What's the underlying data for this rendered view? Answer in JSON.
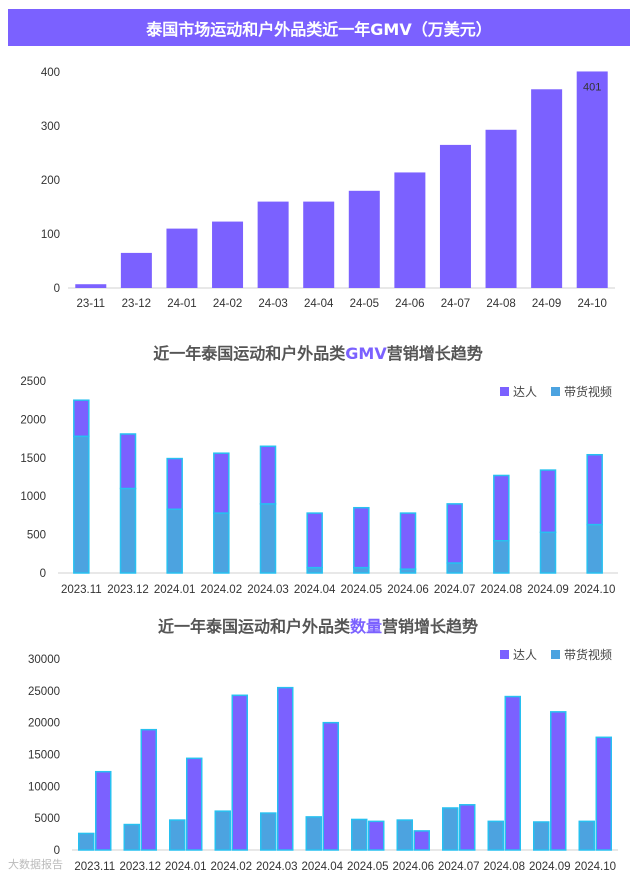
{
  "chart_data": [
    {
      "type": "bar",
      "title": "泰国市场运动和户外品类近一年GMV（万美元）",
      "categories": [
        "23-11",
        "23-12",
        "24-01",
        "24-02",
        "24-03",
        "24-04",
        "24-05",
        "24-06",
        "24-07",
        "24-08",
        "24-09",
        "24-10"
      ],
      "values": [
        7,
        65,
        110,
        123,
        160,
        160,
        180,
        214,
        265,
        293,
        368,
        401
      ],
      "data_labels": [
        {
          "index": 11,
          "text": "401"
        }
      ],
      "ylim": [
        0,
        400
      ],
      "yticks": [
        0,
        100,
        200,
        300,
        400
      ],
      "color": "#7b61ff"
    },
    {
      "type": "bar",
      "stacked": true,
      "title": "近一年泰国运动和户外品类GMV营销增长趋势",
      "title_parts": [
        "近一年泰国运动和户外品类",
        "GMV",
        "营销增长趋势"
      ],
      "categories": [
        "2023.11",
        "2023.12",
        "2024.01",
        "2024.02",
        "2024.03",
        "2024.04",
        "2024.05",
        "2024.06",
        "2024.07",
        "2024.08",
        "2024.09",
        "2024.10"
      ],
      "series": [
        {
          "name": "带货视频",
          "values": [
            1780,
            1100,
            830,
            780,
            900,
            70,
            70,
            50,
            130,
            420,
            530,
            630
          ],
          "color": "#4ca3e0"
        },
        {
          "name": "达人",
          "values": [
            470,
            710,
            660,
            780,
            750,
            710,
            780,
            730,
            770,
            850,
            810,
            910
          ],
          "color": "#7b61ff"
        }
      ],
      "legend_order": [
        "达人",
        "带货视频"
      ],
      "legend_position": "top-right",
      "ylim": [
        0,
        2500
      ],
      "yticks": [
        0,
        500,
        1000,
        1500,
        2000,
        2500
      ]
    },
    {
      "type": "bar",
      "grouped": true,
      "title": "近一年泰国运动和户外品类数量营销增长趋势",
      "title_parts": [
        "近一年泰国运动和户外品类",
        "数量",
        "营销增长趋势"
      ],
      "categories": [
        "2023.11",
        "2023.12",
        "2024.01",
        "2024.02",
        "2024.03",
        "2024.04",
        "2024.05",
        "2024.06",
        "2024.07",
        "2024.08",
        "2024.09",
        "2024.10"
      ],
      "series": [
        {
          "name": "带货视频",
          "values": [
            2600,
            4000,
            4700,
            6100,
            5800,
            5200,
            4800,
            4700,
            6600,
            4500,
            4400,
            4500
          ],
          "color": "#4ca3e0"
        },
        {
          "name": "达人",
          "values": [
            12300,
            18900,
            14400,
            24300,
            25500,
            20000,
            4500,
            3000,
            7100,
            24100,
            21700,
            17700
          ],
          "color": "#7b61ff"
        }
      ],
      "legend_order": [
        "达人",
        "带货视频"
      ],
      "legend_position": "top-right",
      "ylim": [
        0,
        30000
      ],
      "yticks": [
        0,
        5000,
        10000,
        15000,
        20000,
        25000,
        30000
      ]
    }
  ],
  "watermark": "大数据报告"
}
